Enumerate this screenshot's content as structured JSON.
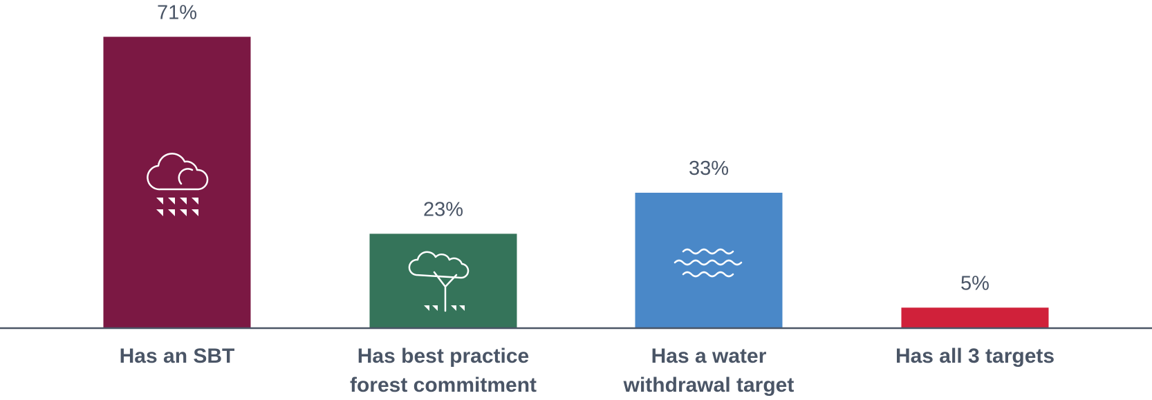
{
  "chart_data": {
    "type": "bar",
    "categories": [
      "Has an SBT",
      "Has best practice forest commitment",
      "Has a water withdrawal target",
      "Has all 3 targets"
    ],
    "values": [
      71,
      23,
      33,
      5
    ],
    "value_labels": [
      "71%",
      "23%",
      "33%",
      "5%"
    ],
    "colors": [
      "#7b1843",
      "#35745a",
      "#4a88c8",
      "#d0213a"
    ]
  }
}
